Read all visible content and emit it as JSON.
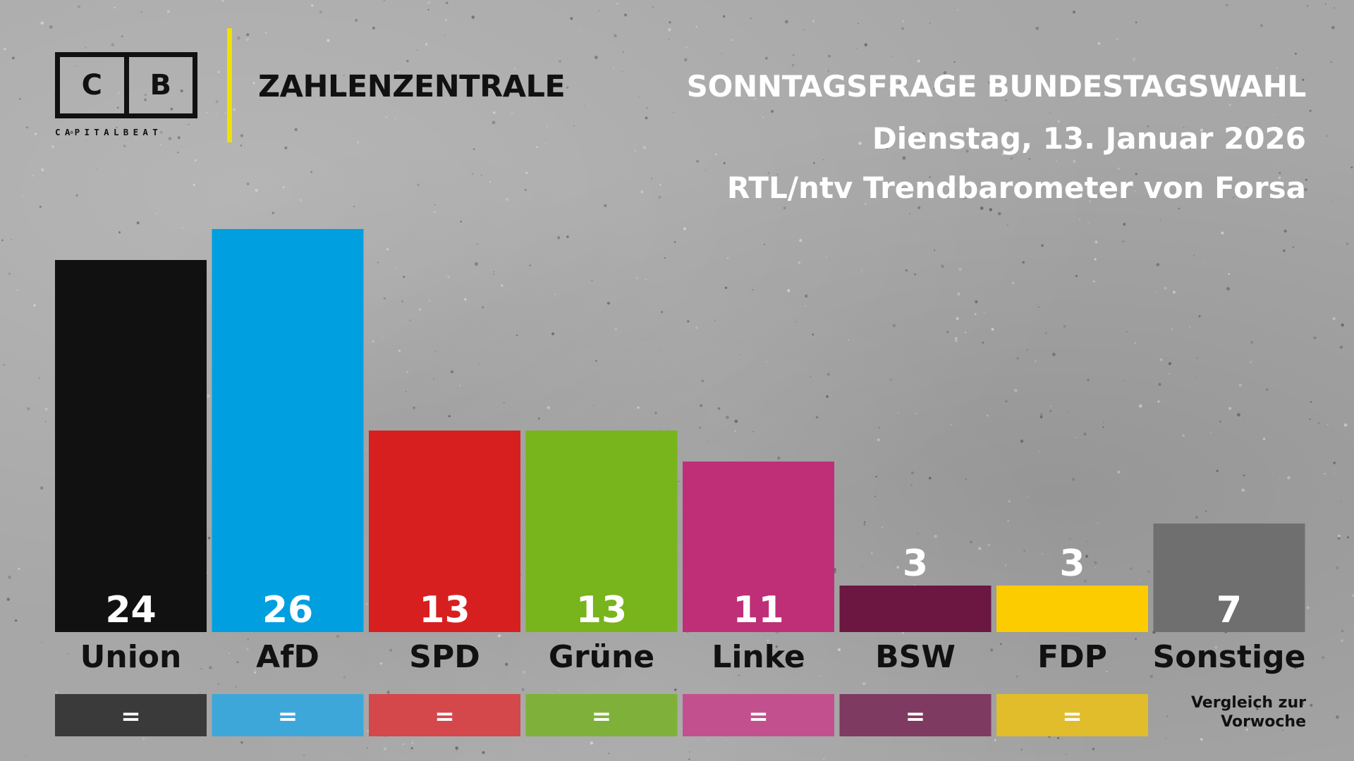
{
  "header": {
    "logo_left": "C",
    "logo_right": "B",
    "logo_sub": "CAPITALBEAT",
    "section": "ZAHLENZENTRALE",
    "title": "SONNTAGSFRAGE BUNDESTAGSWAHL",
    "date": "Dienstag, 13. Januar 2026",
    "source": "RTL/ntv Trendbarometer von Forsa"
  },
  "compare_note": {
    "line1": "Vergleich zur",
    "line2": "Vorwoche"
  },
  "colors": {
    "accent_yellow": "#f0e100",
    "background": "#a7a7a7"
  },
  "chart_data": {
    "type": "bar",
    "categories": [
      "Union",
      "AfD",
      "SPD",
      "Grüne",
      "Linke",
      "BSW",
      "FDP",
      "Sonstige"
    ],
    "values": [
      24,
      26,
      13,
      13,
      11,
      3,
      3,
      7
    ],
    "changes": [
      "=",
      "=",
      "=",
      "=",
      "=",
      "=",
      "=",
      ""
    ],
    "colors": [
      "#111111",
      "#009fe0",
      "#d81f1f",
      "#78b41c",
      "#be2f78",
      "#6b1741",
      "#fccb00",
      "#6f6f6f"
    ],
    "change_colors": [
      "#3a3a3a",
      "#3ea7d9",
      "#d4484b",
      "#7fb13a",
      "#c2508e",
      "#7e3a60",
      "#e1bd2c",
      ""
    ],
    "title": "SONNTAGSFRAGE BUNDESTAGSWAHL",
    "ylim": [
      0,
      26
    ]
  }
}
